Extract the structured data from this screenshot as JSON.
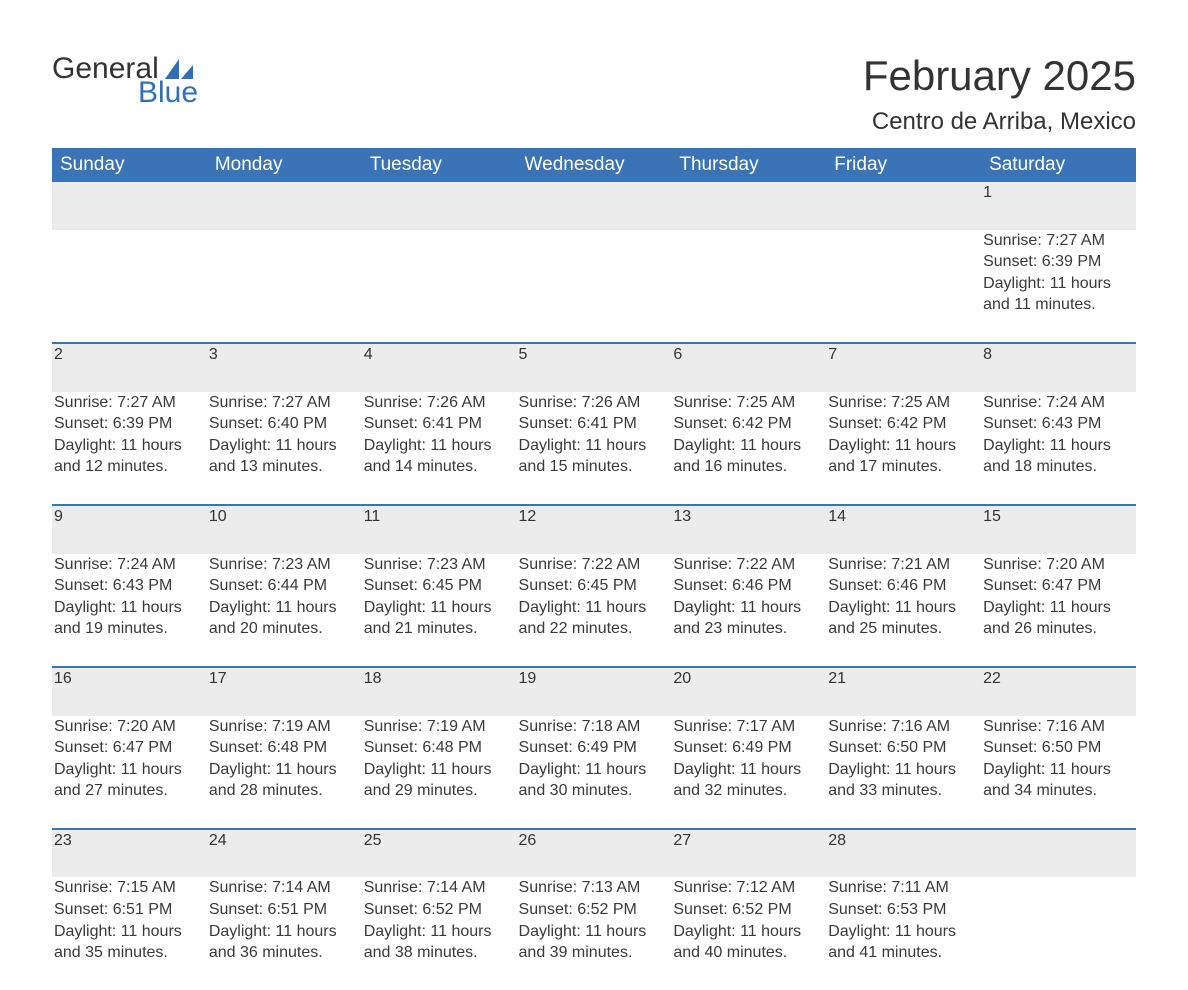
{
  "logo": {
    "text1": "General",
    "text2": "Blue",
    "color1": "#333333",
    "color2": "#326fb4"
  },
  "title": "February 2025",
  "location": "Centro de Arriba, Mexico",
  "colors": {
    "header_bg": "#3a74b6",
    "header_text": "#ffffff",
    "row_bg": "#ececec",
    "row_border": "#3a74b6",
    "text": "#333333",
    "background": "#ffffff"
  },
  "fonts": {
    "title_size": 42,
    "location_size": 24,
    "header_size": 19,
    "cell_size": 16,
    "daynum_size": 18
  },
  "structure": "table",
  "columns": [
    "Sunday",
    "Monday",
    "Tuesday",
    "Wednesday",
    "Thursday",
    "Friday",
    "Saturday"
  ],
  "weeks": [
    [
      null,
      null,
      null,
      null,
      null,
      null,
      {
        "n": "1",
        "sunrise": "Sunrise: 7:27 AM",
        "sunset": "Sunset: 6:39 PM",
        "daylight": "Daylight: 11 hours and 11 minutes."
      }
    ],
    [
      {
        "n": "2",
        "sunrise": "Sunrise: 7:27 AM",
        "sunset": "Sunset: 6:39 PM",
        "daylight": "Daylight: 11 hours and 12 minutes."
      },
      {
        "n": "3",
        "sunrise": "Sunrise: 7:27 AM",
        "sunset": "Sunset: 6:40 PM",
        "daylight": "Daylight: 11 hours and 13 minutes."
      },
      {
        "n": "4",
        "sunrise": "Sunrise: 7:26 AM",
        "sunset": "Sunset: 6:41 PM",
        "daylight": "Daylight: 11 hours and 14 minutes."
      },
      {
        "n": "5",
        "sunrise": "Sunrise: 7:26 AM",
        "sunset": "Sunset: 6:41 PM",
        "daylight": "Daylight: 11 hours and 15 minutes."
      },
      {
        "n": "6",
        "sunrise": "Sunrise: 7:25 AM",
        "sunset": "Sunset: 6:42 PM",
        "daylight": "Daylight: 11 hours and 16 minutes."
      },
      {
        "n": "7",
        "sunrise": "Sunrise: 7:25 AM",
        "sunset": "Sunset: 6:42 PM",
        "daylight": "Daylight: 11 hours and 17 minutes."
      },
      {
        "n": "8",
        "sunrise": "Sunrise: 7:24 AM",
        "sunset": "Sunset: 6:43 PM",
        "daylight": "Daylight: 11 hours and 18 minutes."
      }
    ],
    [
      {
        "n": "9",
        "sunrise": "Sunrise: 7:24 AM",
        "sunset": "Sunset: 6:43 PM",
        "daylight": "Daylight: 11 hours and 19 minutes."
      },
      {
        "n": "10",
        "sunrise": "Sunrise: 7:23 AM",
        "sunset": "Sunset: 6:44 PM",
        "daylight": "Daylight: 11 hours and 20 minutes."
      },
      {
        "n": "11",
        "sunrise": "Sunrise: 7:23 AM",
        "sunset": "Sunset: 6:45 PM",
        "daylight": "Daylight: 11 hours and 21 minutes."
      },
      {
        "n": "12",
        "sunrise": "Sunrise: 7:22 AM",
        "sunset": "Sunset: 6:45 PM",
        "daylight": "Daylight: 11 hours and 22 minutes."
      },
      {
        "n": "13",
        "sunrise": "Sunrise: 7:22 AM",
        "sunset": "Sunset: 6:46 PM",
        "daylight": "Daylight: 11 hours and 23 minutes."
      },
      {
        "n": "14",
        "sunrise": "Sunrise: 7:21 AM",
        "sunset": "Sunset: 6:46 PM",
        "daylight": "Daylight: 11 hours and 25 minutes."
      },
      {
        "n": "15",
        "sunrise": "Sunrise: 7:20 AM",
        "sunset": "Sunset: 6:47 PM",
        "daylight": "Daylight: 11 hours and 26 minutes."
      }
    ],
    [
      {
        "n": "16",
        "sunrise": "Sunrise: 7:20 AM",
        "sunset": "Sunset: 6:47 PM",
        "daylight": "Daylight: 11 hours and 27 minutes."
      },
      {
        "n": "17",
        "sunrise": "Sunrise: 7:19 AM",
        "sunset": "Sunset: 6:48 PM",
        "daylight": "Daylight: 11 hours and 28 minutes."
      },
      {
        "n": "18",
        "sunrise": "Sunrise: 7:19 AM",
        "sunset": "Sunset: 6:48 PM",
        "daylight": "Daylight: 11 hours and 29 minutes."
      },
      {
        "n": "19",
        "sunrise": "Sunrise: 7:18 AM",
        "sunset": "Sunset: 6:49 PM",
        "daylight": "Daylight: 11 hours and 30 minutes."
      },
      {
        "n": "20",
        "sunrise": "Sunrise: 7:17 AM",
        "sunset": "Sunset: 6:49 PM",
        "daylight": "Daylight: 11 hours and 32 minutes."
      },
      {
        "n": "21",
        "sunrise": "Sunrise: 7:16 AM",
        "sunset": "Sunset: 6:50 PM",
        "daylight": "Daylight: 11 hours and 33 minutes."
      },
      {
        "n": "22",
        "sunrise": "Sunrise: 7:16 AM",
        "sunset": "Sunset: 6:50 PM",
        "daylight": "Daylight: 11 hours and 34 minutes."
      }
    ],
    [
      {
        "n": "23",
        "sunrise": "Sunrise: 7:15 AM",
        "sunset": "Sunset: 6:51 PM",
        "daylight": "Daylight: 11 hours and 35 minutes."
      },
      {
        "n": "24",
        "sunrise": "Sunrise: 7:14 AM",
        "sunset": "Sunset: 6:51 PM",
        "daylight": "Daylight: 11 hours and 36 minutes."
      },
      {
        "n": "25",
        "sunrise": "Sunrise: 7:14 AM",
        "sunset": "Sunset: 6:52 PM",
        "daylight": "Daylight: 11 hours and 38 minutes."
      },
      {
        "n": "26",
        "sunrise": "Sunrise: 7:13 AM",
        "sunset": "Sunset: 6:52 PM",
        "daylight": "Daylight: 11 hours and 39 minutes."
      },
      {
        "n": "27",
        "sunrise": "Sunrise: 7:12 AM",
        "sunset": "Sunset: 6:52 PM",
        "daylight": "Daylight: 11 hours and 40 minutes."
      },
      {
        "n": "28",
        "sunrise": "Sunrise: 7:11 AM",
        "sunset": "Sunset: 6:53 PM",
        "daylight": "Daylight: 11 hours and 41 minutes."
      },
      null
    ]
  ]
}
